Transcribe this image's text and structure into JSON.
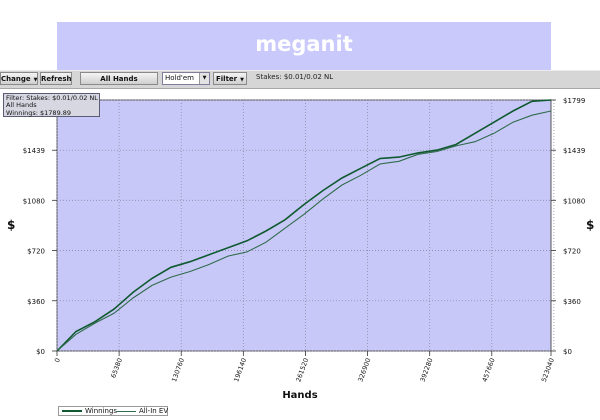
{
  "overlay": {
    "title": "meganit",
    "color": "#c9c9fb"
  },
  "toolbar": {
    "change_label": "Change",
    "refresh_label": "Refresh",
    "hands_label": "All Hands",
    "game_select_value": "Hold'em",
    "filter_label": "Filter",
    "stakes_text": "Stakes: $0.01/0.02 NL"
  },
  "infobox": {
    "line1": "Filter: Stakes: $0.01/0.02 NL",
    "line2": "All Hands",
    "line3": "Winnings: $1789.89"
  },
  "colors": {
    "plot_bg": "#c8c8f8",
    "grid": "#8a8aa8",
    "winnings": "#0f5a30",
    "allin": "#2f6b4c"
  },
  "chart_data": {
    "type": "line",
    "xlabel": "Hands",
    "ylabel": "$",
    "xlim": [
      0,
      520000
    ],
    "ylim": [
      0,
      1799
    ],
    "x_ticks": [
      0,
      65380,
      130760,
      196140,
      261520,
      326900,
      392280,
      457660,
      523040
    ],
    "y_tick_labels": [
      "$0",
      "$360",
      "$720",
      "$1080",
      "$1439",
      "$1799"
    ],
    "y_tick_values": [
      0,
      360,
      720,
      1080,
      1439,
      1799
    ],
    "grid": true,
    "legend_position": "bottom-left",
    "series": [
      {
        "name": "Winnings",
        "x": [
          0,
          20000,
          40000,
          60000,
          80000,
          100000,
          120000,
          140000,
          160000,
          180000,
          200000,
          220000,
          240000,
          260000,
          280000,
          300000,
          320000,
          340000,
          360000,
          380000,
          400000,
          420000,
          440000,
          460000,
          480000,
          500000,
          520000
        ],
        "values": [
          0,
          140,
          210,
          300,
          420,
          520,
          600,
          640,
          690,
          740,
          790,
          860,
          940,
          1050,
          1150,
          1240,
          1310,
          1380,
          1390,
          1420,
          1440,
          1480,
          1560,
          1640,
          1720,
          1790,
          1799
        ]
      },
      {
        "name": "All-In EV",
        "x": [
          0,
          20000,
          40000,
          60000,
          80000,
          100000,
          120000,
          140000,
          160000,
          180000,
          200000,
          220000,
          240000,
          260000,
          280000,
          300000,
          320000,
          340000,
          360000,
          380000,
          400000,
          420000,
          440000,
          460000,
          480000,
          500000,
          520000
        ],
        "values": [
          0,
          120,
          200,
          270,
          380,
          470,
          530,
          570,
          620,
          680,
          710,
          780,
          880,
          980,
          1090,
          1190,
          1260,
          1340,
          1360,
          1410,
          1430,
          1470,
          1500,
          1560,
          1640,
          1690,
          1720
        ]
      }
    ]
  }
}
